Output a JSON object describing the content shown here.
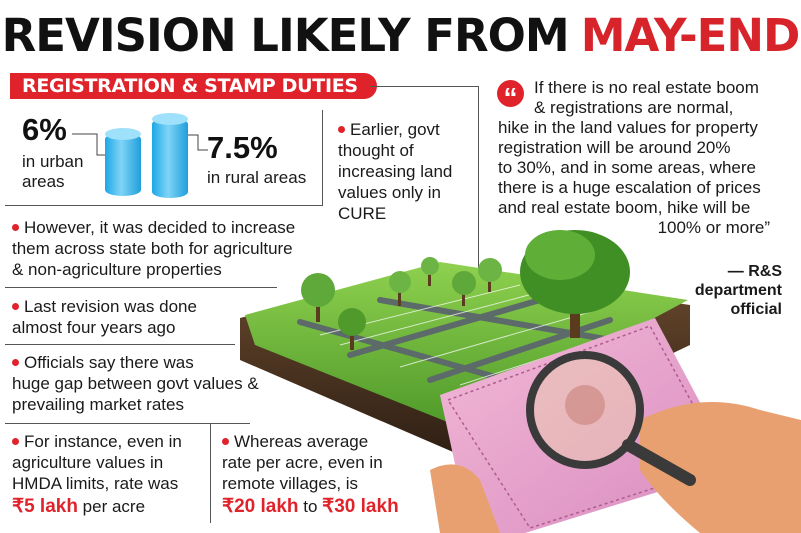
{
  "headline": {
    "black": "REVISION LIKELY FROM",
    "red": "MAY-END"
  },
  "banner": "REGISTRATION & STAMP DUTIES",
  "urban": {
    "value": "6%",
    "label_line1": "in urban",
    "label_line2": "areas"
  },
  "rural": {
    "value": "7.5%",
    "label": "in rural areas"
  },
  "earlier": {
    "l1": "Earlier, govt",
    "l2": "thought of",
    "l3": "increasing land",
    "l4": "values only in",
    "l5": "CURE"
  },
  "bullets": {
    "however": {
      "l1": "However, it was decided to increase",
      "l2": "them across state both for agriculture",
      "l3": "& non-agriculture properties"
    },
    "last": {
      "l1": "Last revision was done",
      "l2": "almost four years ago"
    },
    "officials": {
      "l1": "Officials say there was",
      "l2": "huge gap between govt values &",
      "l3": "prevailing market rates"
    },
    "instance": {
      "l1": "For instance, even in",
      "l2": "agriculture values in",
      "l3": "HMDA limits, rate was",
      "price": "₹5 lakh",
      "suffix": " per acre"
    },
    "whereas": {
      "l1": "Whereas average",
      "l2": "rate per acre, even in",
      "l3": "remote villages, is",
      "price1": "₹20 lakh",
      "mid": " to ",
      "price2": "₹30 lakh"
    }
  },
  "quote": {
    "l1": "If there is no real estate boom",
    "l2": "& registrations are normal,",
    "l3": "hike in the land values for property",
    "l4": "registration will be around 20%",
    "l5": "to 30%, and in some areas, where",
    "l6": "there is a huge escalation of prices",
    "l7": "and real estate boom, hike will be",
    "l8": "100% or more”"
  },
  "attribution": {
    "l1": "— R&S",
    "l2": "department",
    "l3": "official"
  },
  "colors": {
    "accent": "#e0232b",
    "cylinder": "#1ea7e6"
  }
}
